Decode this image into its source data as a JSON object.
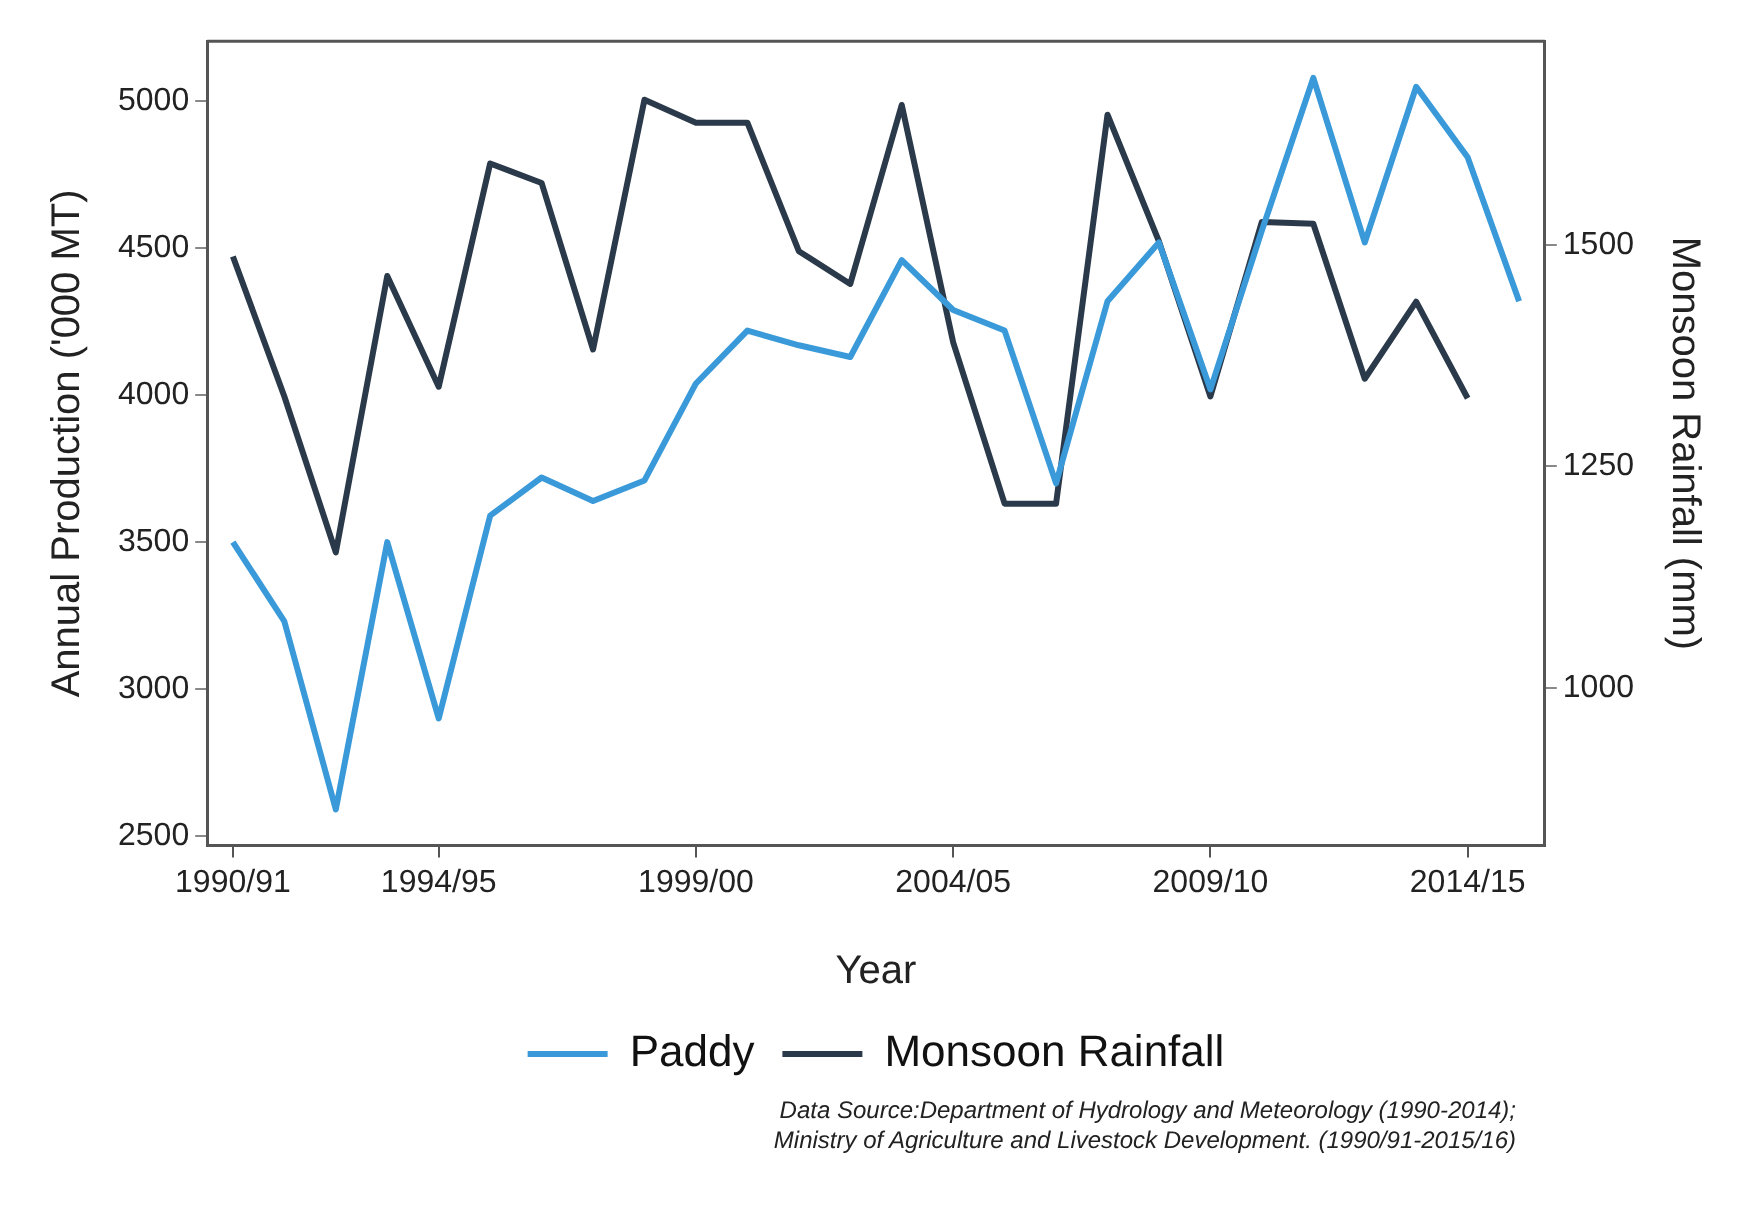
{
  "chart_data": {
    "type": "line",
    "xlabel": "Year",
    "ylabel": "Annual Production ('000 MT)",
    "y2label": "Monsoon Rainfall (mm)",
    "categories": [
      "1990/91",
      null,
      null,
      null,
      "1994/95",
      null,
      null,
      null,
      null,
      "1999/00",
      null,
      null,
      null,
      null,
      "2004/05",
      null,
      null,
      null,
      null,
      "2009/10",
      null,
      null,
      null,
      null,
      "2014/15",
      null
    ],
    "series": [
      {
        "name": "Paddy",
        "color": "#3a9ad9",
        "values": [
          3500,
          3230,
          2590,
          3500,
          2900,
          3590,
          3720,
          3640,
          3710,
          4040,
          4220,
          4170,
          4130,
          4460,
          4290,
          4220,
          3700,
          4320,
          4520,
          4020,
          4560,
          5080,
          4520,
          5050,
          4810,
          4320
        ]
      },
      {
        "name": "Monsoon Rainfall",
        "color": "#2b3a4a",
        "axis": "y2",
        "values": [
          1487,
          1329,
          1153,
          1465,
          1340,
          1592,
          1570,
          1382,
          1664,
          1638,
          1638,
          1493,
          1456,
          1658,
          1390,
          1208,
          1208,
          1647,
          1504,
          1329,
          1526,
          1524,
          1349,
          1436,
          1327,
          null
        ]
      }
    ],
    "ylim": [
      2467,
      5205
    ],
    "yticks": [
      2500,
      3000,
      3500,
      4000,
      4500,
      5000
    ],
    "y2lim": [
      822,
      1730
    ],
    "y2ticks": [
      1000,
      1250,
      1500
    ],
    "grid": false,
    "legend": "bottom",
    "annotations": [
      "Data Source:Department of Hydrology and Meteorology (1990-2014);",
      "Ministry of Agriculture and Livestock Development. (1990/91-2015/16)"
    ]
  }
}
